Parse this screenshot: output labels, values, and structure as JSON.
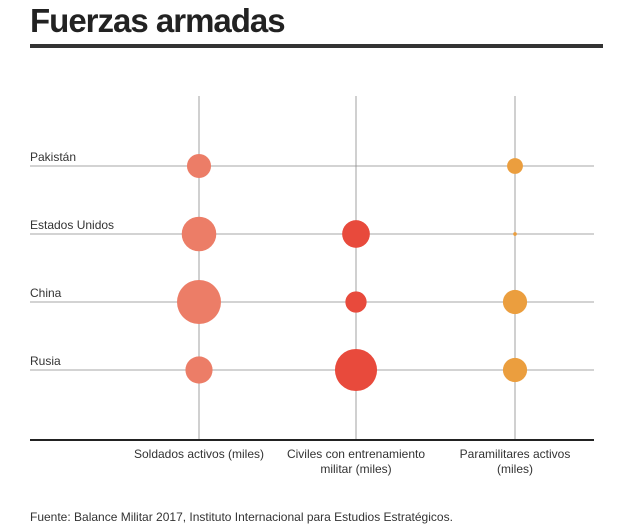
{
  "header": {
    "title": "Fuerzas armadas"
  },
  "footer": {
    "source": "Fuente: Balance Militar 2017, Instituto Internacional para Estudios Estratégicos."
  },
  "colors": {
    "soldados": "#ec7d67",
    "civiles": "#e84a3c",
    "paramilitares": "#eb9e3e",
    "grid": "#8a8a8a",
    "axis": "#222222"
  },
  "chart_data": {
    "type": "bubble",
    "title": "",
    "rows": [
      "Pakistán",
      "Estados Unidos",
      "China",
      "Rusia"
    ],
    "columns": [
      {
        "label_lines": [
          "Soldados activos (miles)"
        ],
        "color_key": "soldados"
      },
      {
        "label_lines": [
          "Civiles con entrenamiento",
          "militar (miles)"
        ],
        "color_key": "civiles"
      },
      {
        "label_lines": [
          "Paramilitares activos",
          "(miles)"
        ],
        "color_key": "paramilitares"
      }
    ],
    "values": [
      [
        654,
        0,
        282
      ],
      [
        1348,
        866,
        15
      ],
      [
        2183,
        510,
        660
      ],
      [
        831,
        2000,
        659
      ]
    ],
    "size_encoding": "area"
  }
}
